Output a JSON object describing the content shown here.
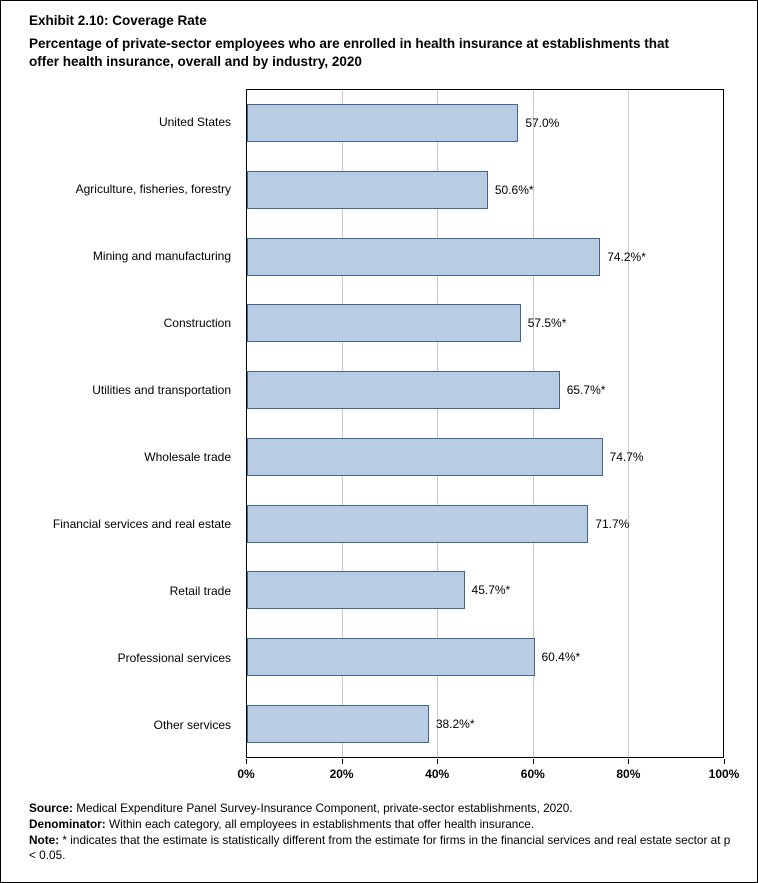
{
  "title": {
    "exhibit": "Exhibit 2.10: Coverage Rate",
    "subtitle": "Percentage of private-sector employees who are enrolled in health insurance at establishments that offer health insurance, overall and by industry, 2020"
  },
  "chart_data": {
    "type": "bar",
    "orientation": "horizontal",
    "categories": [
      "United States",
      "Agriculture, fisheries, forestry",
      "Mining and manufacturing",
      "Construction",
      "Utilities and transportation",
      "Wholesale trade",
      "Financial services and real estate",
      "Retail trade",
      "Professional services",
      "Other services"
    ],
    "values": [
      57.0,
      50.6,
      74.2,
      57.5,
      65.7,
      74.7,
      71.7,
      45.7,
      60.4,
      38.2
    ],
    "value_labels": [
      "57.0%",
      "50.6%*",
      "74.2%*",
      "57.5%*",
      "65.7%*",
      "74.7%",
      "71.7%",
      "45.7%*",
      "60.4%*",
      "38.2%*"
    ],
    "xlim": [
      0,
      100
    ],
    "x_ticks": [
      "0%",
      "20%",
      "40%",
      "60%",
      "80%",
      "100%"
    ],
    "grid": true,
    "legend": "none",
    "bar_fill": "#b8cce4",
    "bar_border": "#44658b",
    "gridline_color": "#c9c9c9"
  },
  "footer": {
    "source_label": "Source:",
    "source_text": " Medical Expenditure Panel Survey-Insurance Component, private-sector establishments, 2020.",
    "denominator_label": "Denominator:",
    "denominator_text": " Within each category, all employees in establishments that offer health insurance.",
    "note_label": "Note:",
    "note_text": " * indicates that the estimate is statistically different from the estimate for firms in the financial services and real estate sector at p < 0.05."
  }
}
